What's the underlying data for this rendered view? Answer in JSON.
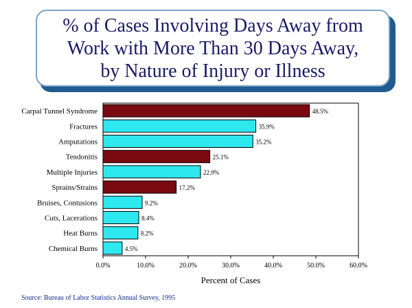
{
  "title": {
    "lines": [
      "% of Cases Involving Days Away from",
      "Work with More Than 30 Days Away,",
      "by Nature of Injury or Illness"
    ]
  },
  "source": "Source: Bureau of Labor Statistics Annual Survey, 1995",
  "colors": {
    "dark": "#7a0a12",
    "light": "#2ee8f0",
    "title_text": "#1a1a66",
    "title_shadow": "#1f5c8f",
    "source_text": "#0e2a8c"
  },
  "chart_data": {
    "type": "bar",
    "orientation": "horizontal",
    "title": "% of Cases Involving Days Away from Work with More Than 30 Days Away, by Nature of Injury or Illness",
    "categories": [
      "Carpal Tunnel Syndrome",
      "Fractures",
      "Amputations",
      "Tendonitis",
      "Multiple Injuries",
      "Sprains/Strains",
      "Bruises, Contusions",
      "Cuts, Lacerations",
      "Heat Burns",
      "Chemical Burns"
    ],
    "values": [
      48.5,
      35.9,
      35.2,
      25.1,
      22.9,
      17.2,
      9.2,
      8.4,
      8.2,
      4.5
    ],
    "value_labels": [
      "48.5%",
      "35.9%",
      "35.2%",
      "25.1%",
      "22.9%",
      "17.2%",
      "9.2%",
      "8.4%",
      "8.2%",
      "4.5%"
    ],
    "bar_colors": [
      "dark",
      "light",
      "light",
      "dark",
      "light",
      "dark",
      "light",
      "light",
      "light",
      "light"
    ],
    "xlabel": "Percent of Cases",
    "ylabel": "",
    "xlim": [
      0,
      60
    ],
    "x_ticks": [
      0,
      10,
      20,
      30,
      40,
      50,
      60
    ],
    "x_tick_labels": [
      "0.0%",
      "10.0%",
      "20.0%",
      "30.0%",
      "40.0%",
      "50.0%",
      "60.0%"
    ],
    "grid": false,
    "legend": "none"
  }
}
